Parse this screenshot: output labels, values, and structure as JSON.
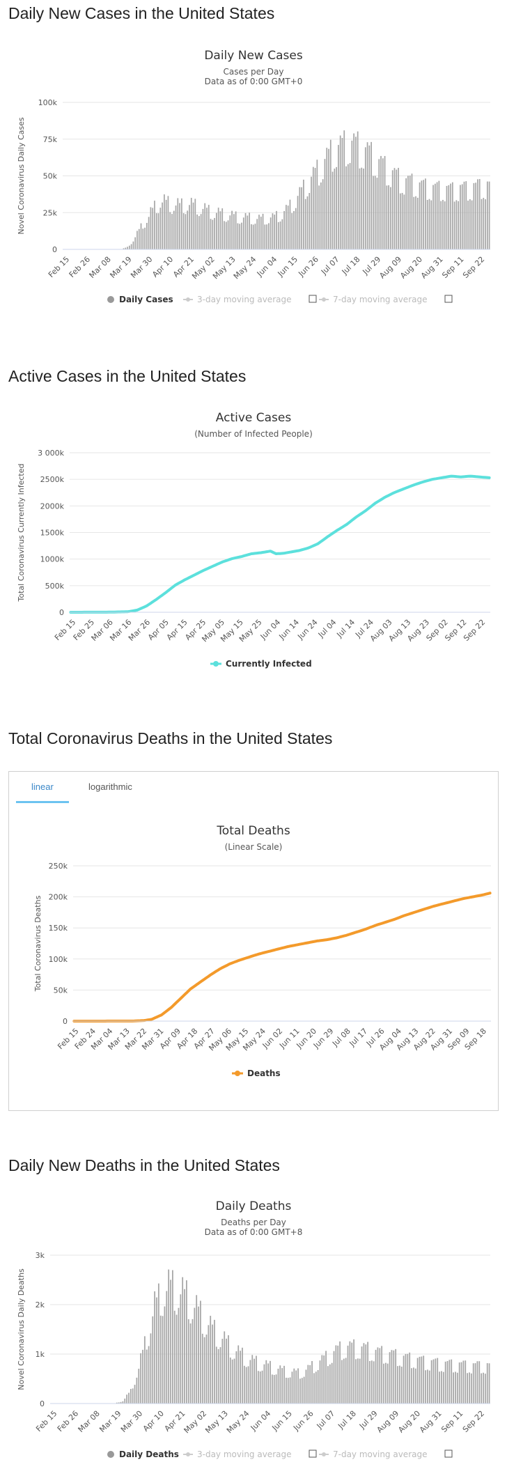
{
  "sections": {
    "daily_cases_title": "Daily New Cases in the United States",
    "active_title": "Active Cases in the United States",
    "total_deaths_title": "Total Coronavirus Deaths in the United States",
    "daily_deaths_title": "Daily New Deaths in the United States"
  },
  "tabs": {
    "linear": "linear",
    "logarithmic": "logarithmic"
  },
  "colors": {
    "bars": "#a6a6a6",
    "active": "#5ce0dc",
    "deaths": "#f39a2b",
    "grid": "#e6e6e6",
    "tab_accent": "#6cc3f0"
  },
  "chart_data": [
    {
      "id": "daily_cases",
      "type": "bar",
      "title": "Daily New Cases",
      "subtitle": "Cases per Day",
      "subtitle2": "Data as of 0:00 GMT+0",
      "ylabel": "Novel Coronavirus Daily Cases",
      "ylim": [
        0,
        100000
      ],
      "yticks": [
        "0",
        "25k",
        "50k",
        "75k",
        "100k"
      ],
      "ytick_values": [
        0,
        25000,
        50000,
        75000,
        100000
      ],
      "xticks": [
        "Feb 15",
        "Feb 26",
        "Mar 08",
        "Mar 19",
        "Mar 30",
        "Apr 10",
        "Apr 21",
        "May 02",
        "May 13",
        "May 24",
        "Jun 04",
        "Jun 15",
        "Jun 26",
        "Jul 07",
        "Jul 18",
        "Jul 29",
        "Aug 09",
        "Aug 20",
        "Aug 31",
        "Sep 11",
        "Sep 22"
      ],
      "start_date": "Feb 15",
      "legend": [
        "Daily Cases",
        "3-day moving average",
        "7-day moving average"
      ],
      "anchors": [
        [
          0,
          0
        ],
        [
          25,
          0
        ],
        [
          30,
          200
        ],
        [
          33,
          1500
        ],
        [
          36,
          6000
        ],
        [
          40,
          15000
        ],
        [
          44,
          22000
        ],
        [
          47,
          28000
        ],
        [
          50,
          32000
        ],
        [
          53,
          31000
        ],
        [
          56,
          30000
        ],
        [
          60,
          29000
        ],
        [
          64,
          30000
        ],
        [
          68,
          29000
        ],
        [
          72,
          27000
        ],
        [
          76,
          25000
        ],
        [
          80,
          24000
        ],
        [
          84,
          23000
        ],
        [
          88,
          22000
        ],
        [
          92,
          21000
        ],
        [
          96,
          21000
        ],
        [
          100,
          20000
        ],
        [
          104,
          20500
        ],
        [
          108,
          21000
        ],
        [
          112,
          23000
        ],
        [
          116,
          27000
        ],
        [
          120,
          33000
        ],
        [
          124,
          40000
        ],
        [
          128,
          47000
        ],
        [
          132,
          53000
        ],
        [
          136,
          60000
        ],
        [
          140,
          66000
        ],
        [
          144,
          68000
        ],
        [
          148,
          70000
        ],
        [
          152,
          68000
        ],
        [
          156,
          65000
        ],
        [
          160,
          61000
        ],
        [
          164,
          56000
        ],
        [
          168,
          52000
        ],
        [
          172,
          48000
        ],
        [
          176,
          45000
        ],
        [
          180,
          44000
        ],
        [
          184,
          42000
        ],
        [
          188,
          41000
        ],
        [
          192,
          40000
        ],
        [
          196,
          40000
        ],
        [
          200,
          39000
        ],
        [
          204,
          40000
        ],
        [
          208,
          40000
        ],
        [
          212,
          41000
        ],
        [
          220,
          42000
        ]
      ],
      "values": []
    },
    {
      "id": "active_cases",
      "type": "line",
      "title": "Active Cases",
      "subtitle": "(Number of Infected People)",
      "ylabel": "Total Coronavirus Currently Infected",
      "ylim": [
        0,
        3000000
      ],
      "yticks": [
        "0",
        "500k",
        "1000k",
        "1500k",
        "2000k",
        "2500k",
        "3 000k"
      ],
      "ytick_values": [
        0,
        500000,
        1000000,
        1500000,
        2000000,
        2500000,
        3000000
      ],
      "xticks": [
        "Feb 15",
        "Feb 25",
        "Mar 06",
        "Mar 16",
        "Mar 26",
        "Apr 05",
        "Apr 15",
        "Apr 25",
        "May 05",
        "May 15",
        "May 25",
        "Jun 04",
        "Jun 14",
        "Jun 24",
        "Jul 04",
        "Jul 14",
        "Jul 24",
        "Aug 03",
        "Aug 13",
        "Aug 23",
        "Sep 02",
        "Sep 12",
        "Sep 22"
      ],
      "legend": [
        "Currently Infected"
      ],
      "anchors": [
        [
          0,
          0
        ],
        [
          20,
          2000
        ],
        [
          30,
          10000
        ],
        [
          35,
          40000
        ],
        [
          40,
          120000
        ],
        [
          45,
          240000
        ],
        [
          50,
          370000
        ],
        [
          55,
          510000
        ],
        [
          60,
          610000
        ],
        [
          65,
          700000
        ],
        [
          70,
          790000
        ],
        [
          75,
          870000
        ],
        [
          80,
          950000
        ],
        [
          85,
          1010000
        ],
        [
          90,
          1050000
        ],
        [
          95,
          1100000
        ],
        [
          100,
          1120000
        ],
        [
          105,
          1150000
        ],
        [
          108,
          1100000
        ],
        [
          112,
          1110000
        ],
        [
          120,
          1160000
        ],
        [
          125,
          1210000
        ],
        [
          130,
          1290000
        ],
        [
          135,
          1420000
        ],
        [
          140,
          1540000
        ],
        [
          145,
          1650000
        ],
        [
          150,
          1790000
        ],
        [
          155,
          1910000
        ],
        [
          160,
          2050000
        ],
        [
          165,
          2160000
        ],
        [
          170,
          2250000
        ],
        [
          175,
          2320000
        ],
        [
          180,
          2390000
        ],
        [
          185,
          2450000
        ],
        [
          190,
          2500000
        ],
        [
          195,
          2530000
        ],
        [
          200,
          2560000
        ],
        [
          205,
          2545000
        ],
        [
          210,
          2560000
        ],
        [
          215,
          2545000
        ],
        [
          220,
          2530000
        ]
      ],
      "values": []
    },
    {
      "id": "total_deaths",
      "type": "line",
      "title": "Total Deaths",
      "subtitle": "(Linear Scale)",
      "ylabel": "Total Coronavirus Deaths",
      "ylim": [
        0,
        250000
      ],
      "yticks": [
        "0",
        "50k",
        "100k",
        "150k",
        "200k",
        "250k"
      ],
      "ytick_values": [
        0,
        50000,
        100000,
        150000,
        200000,
        250000
      ],
      "xticks": [
        "Feb 15",
        "Feb 24",
        "Mar 04",
        "Mar 13",
        "Mar 22",
        "Mar 31",
        "Apr 09",
        "Apr 18",
        "Apr 27",
        "May 06",
        "May 15",
        "May 24",
        "Jun 02",
        "Jun 11",
        "Jun 20",
        "Jun 29",
        "Jul 08",
        "Jul 17",
        "Jul 26",
        "Aug 04",
        "Aug 13",
        "Aug 22",
        "Aug 31",
        "Sep 09",
        "Sep 18"
      ],
      "legend": [
        "Deaths"
      ],
      "anchors": [
        [
          0,
          0
        ],
        [
          30,
          100
        ],
        [
          36,
          1000
        ],
        [
          40,
          3000
        ],
        [
          45,
          10000
        ],
        [
          50,
          22000
        ],
        [
          55,
          37000
        ],
        [
          60,
          52000
        ],
        [
          65,
          63000
        ],
        [
          70,
          74000
        ],
        [
          75,
          84000
        ],
        [
          80,
          92000
        ],
        [
          85,
          98000
        ],
        [
          90,
          103000
        ],
        [
          95,
          108000
        ],
        [
          100,
          112000
        ],
        [
          105,
          116000
        ],
        [
          110,
          120000
        ],
        [
          115,
          123000
        ],
        [
          120,
          126000
        ],
        [
          125,
          129000
        ],
        [
          130,
          131000
        ],
        [
          135,
          134000
        ],
        [
          140,
          138000
        ],
        [
          145,
          143000
        ],
        [
          150,
          148000
        ],
        [
          155,
          154000
        ],
        [
          160,
          159000
        ],
        [
          165,
          164000
        ],
        [
          170,
          170000
        ],
        [
          175,
          175000
        ],
        [
          180,
          180000
        ],
        [
          185,
          185000
        ],
        [
          190,
          189000
        ],
        [
          195,
          193000
        ],
        [
          200,
          197000
        ],
        [
          205,
          200000
        ],
        [
          210,
          203000
        ],
        [
          214,
          206000
        ]
      ],
      "values": []
    },
    {
      "id": "daily_deaths",
      "type": "bar",
      "title": "Daily Deaths",
      "subtitle": "Deaths per Day",
      "subtitle2": "Data as of 0:00 GMT+8",
      "ylabel": "Novel Coronavirus Daily Deaths",
      "ylim": [
        0,
        3000
      ],
      "yticks": [
        "0",
        "1k",
        "2k",
        "3k"
      ],
      "ytick_values": [
        0,
        1000,
        2000,
        3000
      ],
      "xticks": [
        "Feb 15",
        "Feb 26",
        "Mar 08",
        "Mar 19",
        "Mar 30",
        "Apr 10",
        "Apr 21",
        "May 02",
        "May 13",
        "May 24",
        "Jun 04",
        "Jun 15",
        "Jun 26",
        "Jul 07",
        "Jul 18",
        "Jul 29",
        "Aug 09",
        "Aug 20",
        "Aug 31",
        "Sep 11",
        "Sep 22"
      ],
      "legend": [
        "Daily Deaths",
        "3-day moving average",
        "7-day moving average"
      ],
      "anchors": [
        [
          0,
          0
        ],
        [
          32,
          5
        ],
        [
          36,
          50
        ],
        [
          40,
          250
        ],
        [
          44,
          700
        ],
        [
          48,
          1300
        ],
        [
          52,
          1900
        ],
        [
          56,
          2200
        ],
        [
          60,
          2300
        ],
        [
          64,
          2200
        ],
        [
          68,
          2100
        ],
        [
          72,
          1900
        ],
        [
          76,
          1700
        ],
        [
          80,
          1500
        ],
        [
          84,
          1350
        ],
        [
          88,
          1200
        ],
        [
          92,
          1050
        ],
        [
          96,
          950
        ],
        [
          100,
          850
        ],
        [
          104,
          800
        ],
        [
          108,
          750
        ],
        [
          112,
          700
        ],
        [
          116,
          650
        ],
        [
          120,
          620
        ],
        [
          124,
          600
        ],
        [
          128,
          650
        ],
        [
          132,
          750
        ],
        [
          136,
          850
        ],
        [
          140,
          950
        ],
        [
          144,
          1050
        ],
        [
          148,
          1100
        ],
        [
          152,
          1100
        ],
        [
          156,
          1080
        ],
        [
          160,
          1050
        ],
        [
          164,
          1000
        ],
        [
          168,
          980
        ],
        [
          172,
          950
        ],
        [
          176,
          900
        ],
        [
          180,
          880
        ],
        [
          184,
          850
        ],
        [
          188,
          820
        ],
        [
          192,
          800
        ],
        [
          196,
          780
        ],
        [
          200,
          770
        ],
        [
          204,
          760
        ],
        [
          208,
          750
        ],
        [
          212,
          740
        ],
        [
          220,
          740
        ]
      ],
      "values": []
    }
  ]
}
